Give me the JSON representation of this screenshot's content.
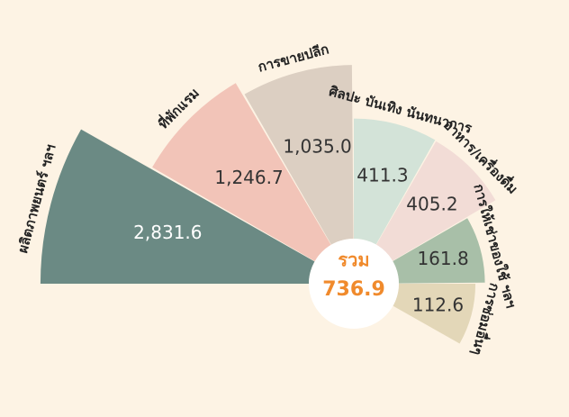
{
  "chart_data": {
    "type": "polar-area",
    "categories": [
      "ผลิตภาพยนตร์ ฯลฯ",
      "ที่พักแรม",
      "การขายปลีก",
      "ศิลปะ บันเทิง นันทนาการ",
      "อาหาร/เครื่องดื่ม",
      "การให้เช่าของใช้ ฯลฯ",
      "การซ่อมอื่นๆ"
    ],
    "values": [
      2831.6,
      1246.7,
      1035.0,
      411.3,
      405.2,
      161.8,
      112.6
    ],
    "value_labels": [
      "2,831.6",
      "1,246.7",
      "1,035.0",
      "411.3",
      "405.2",
      "161.8",
      "112.6"
    ],
    "colors": [
      "#6b8a84",
      "#f2c4b8",
      "#dccfc2",
      "#d3e3d8",
      "#f2dcd6",
      "#a8bfa8",
      "#e3d7b8"
    ],
    "center_label": "รวม",
    "center_value": 736.9
  }
}
